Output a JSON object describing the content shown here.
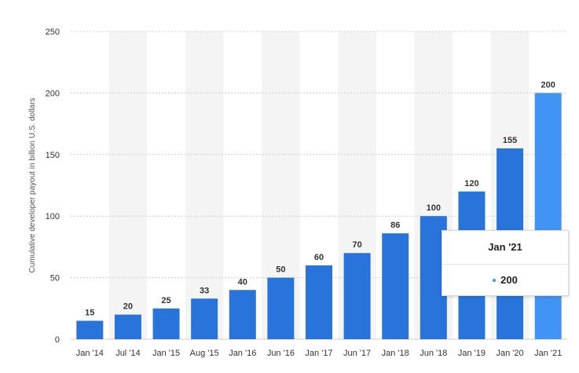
{
  "chart_data": {
    "type": "bar",
    "categories": [
      "Jan '14",
      "Jul '14",
      "Jan '15",
      "Aug '15",
      "Jan '16",
      "Jun '16",
      "Jan '17",
      "Jun '17",
      "Jan '18",
      "Jun '18",
      "Jan '19",
      "Jan '20",
      "Jan '21"
    ],
    "values": [
      15,
      20,
      25,
      33,
      40,
      50,
      60,
      70,
      86,
      100,
      120,
      155,
      200
    ],
    "ylabel": "Cumulative developer payout in billion U.S. dollars",
    "xlabel": "",
    "ylim": [
      0,
      250
    ],
    "yticks": [
      0,
      50,
      100,
      150,
      200,
      250
    ],
    "grid": "horizontal dashed",
    "data_labels": true,
    "highlighted_category": "Jan '21"
  },
  "colors": {
    "bar": "#2874db",
    "bar_highlight": "#4294f4",
    "band": "#f4f4f4",
    "grid": "#cfcfcf"
  },
  "tooltip": {
    "title": "Jan '21",
    "value": "200"
  }
}
